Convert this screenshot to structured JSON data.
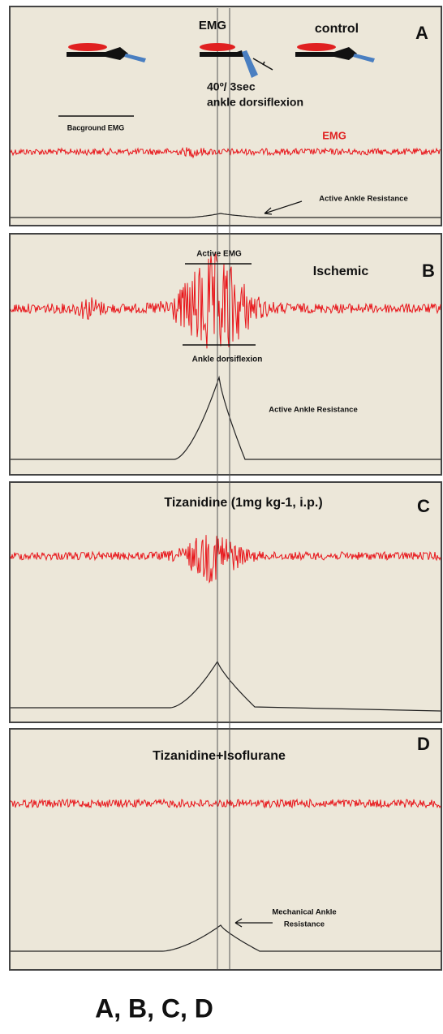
{
  "panels": [
    {
      "letter": "A",
      "emg_label": "EMG",
      "control_label": "control",
      "stimulus": [
        "40º/ 3sec",
        "ankle dorsiflexion"
      ],
      "background_label": "Bacground EMG",
      "trace_label": "EMG",
      "resistance_label": "Active Ankle Resistance"
    },
    {
      "letter": "B",
      "condition": "Ischemic",
      "active_emg_label": "Active EMG",
      "dorsiflexion_label": "Ankle dorsiflexion",
      "resistance_label": "Active Ankle Resistance"
    },
    {
      "letter": "C",
      "condition": "Tizanidine (1mg kg-1, i.p.)"
    },
    {
      "letter": "D",
      "condition": "Tizanidine+Isoflurane",
      "resistance_label": [
        "Mechanical Ankle",
        "Resistance"
      ]
    }
  ],
  "caption": "A, B, C, D"
}
